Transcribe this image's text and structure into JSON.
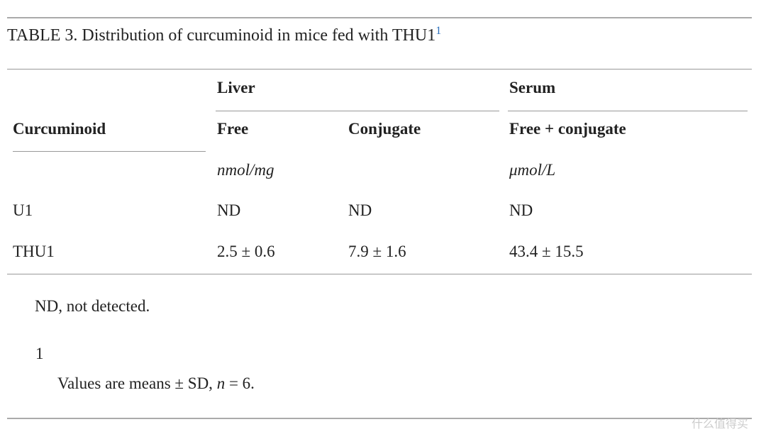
{
  "title": {
    "text": "TABLE 3. Distribution of curcuminoid in mice fed with THU1",
    "footnote_ref": "1"
  },
  "table": {
    "header_groups": {
      "row_label": "Curcuminoid",
      "liver": "Liver",
      "serum": "Serum"
    },
    "columns": [
      "Free",
      "Conjugate",
      "Free + conjugate"
    ],
    "units": {
      "liver": "nmol/mg",
      "serum": "μmol/L"
    },
    "rows": [
      [
        "U1",
        "ND",
        "ND",
        "ND"
      ],
      [
        "THU1",
        "2.5 ± 0.6",
        "7.9 ± 1.6",
        "43.4 ± 15.5"
      ]
    ]
  },
  "footnotes": {
    "abbreviation": "ND, not detected.",
    "marker": "1",
    "note_parts": [
      "Values are means ± SD, ",
      "n",
      " = 6."
    ]
  },
  "watermark": "什么值得买"
}
